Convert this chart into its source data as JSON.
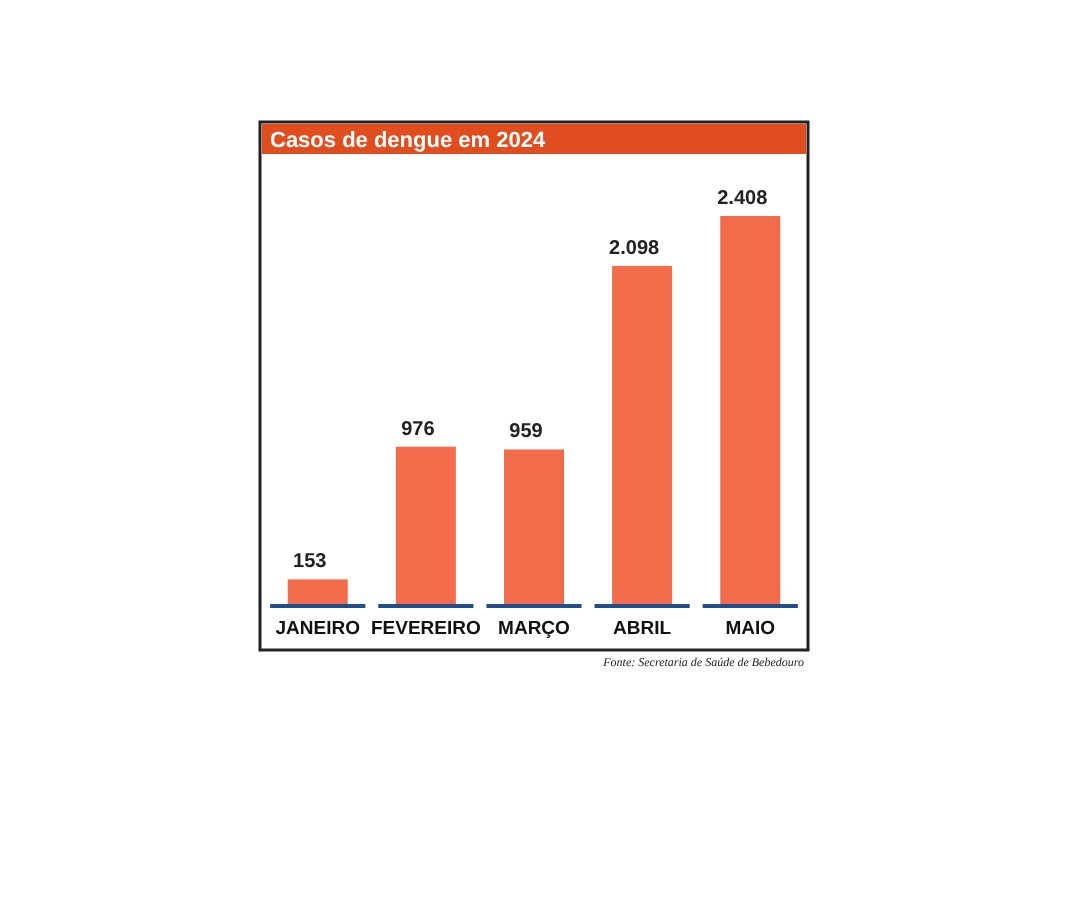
{
  "chart_data": {
    "type": "bar",
    "title": "Casos de dengue em 2024",
    "categories": [
      "JANEIRO",
      "FEVEREIRO",
      "MARÇO",
      "ABRIL",
      "MAIO"
    ],
    "values": [
      153,
      976,
      959,
      2098,
      2408
    ],
    "value_labels": [
      "153",
      "976",
      "959",
      "2.098",
      "2.408"
    ],
    "color": "#f26b4a",
    "annotations": [
      "Fonte: Secretaria de Saúde de Bebedouro"
    ]
  }
}
